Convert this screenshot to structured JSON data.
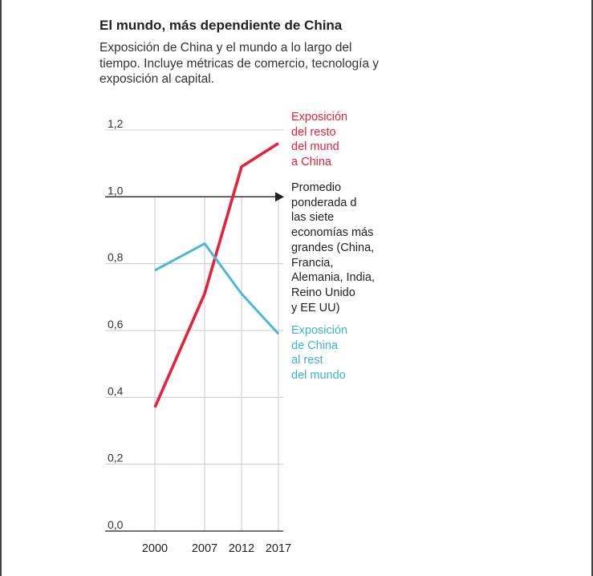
{
  "title": "El mundo, más dependiente de China",
  "subtitle": "Exposición de China y el mundo a lo largo del tiempo. Incluye métricas de comercio, tecnología y exposición al capital.",
  "colors": {
    "red": "#e8213a",
    "blue": "#4db8d4",
    "grid": "#c8c8c8",
    "axis": "#222222"
  },
  "chart_data": {
    "type": "line",
    "x": [
      2000,
      2007,
      2012,
      2017
    ],
    "x_tick_labels": [
      "2000",
      "2007",
      "2012",
      "2017"
    ],
    "ylim": [
      0,
      1.2
    ],
    "y_ticks": [
      0.0,
      0.2,
      0.4,
      0.6,
      0.8,
      1.0,
      1.2
    ],
    "y_tick_labels": [
      "0,0",
      "0,2",
      "0,4",
      "0,6",
      "0,8",
      "1,0",
      "1,2"
    ],
    "reference_line": {
      "value": 1.0,
      "label_lines": [
        "Promedio",
        "ponderada d",
        "las siete",
        "economías más",
        "grandes (China,",
        "Francia,",
        "Alemania, India,",
        "Reino Unido",
        "y EE UU)"
      ]
    },
    "series": [
      {
        "name_lines": [
          "Exposición",
          "del resto",
          "del mund",
          "a China"
        ],
        "color": "#e8213a",
        "values": [
          0.37,
          0.71,
          1.09,
          1.16
        ]
      },
      {
        "name_lines": [
          "Exposición",
          "de China",
          "al rest",
          "del mundo"
        ],
        "color": "#4db8d4",
        "values": [
          0.78,
          0.86,
          0.71,
          0.59
        ]
      }
    ],
    "grid": true
  }
}
